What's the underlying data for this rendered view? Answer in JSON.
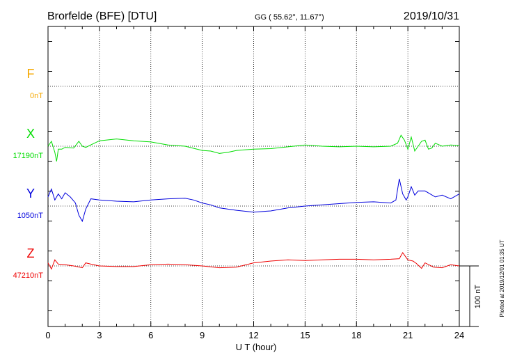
{
  "header": {
    "station": "Brorfelde (BFE)  [DTU]",
    "coords": "GG ( 55.62°,  11.67°)",
    "date": "2019/10/31"
  },
  "footer": {
    "plotted": "Plotted at 2019/12/01 01:35 UT"
  },
  "chart_data": {
    "type": "line",
    "xlabel": "U T (hour)",
    "xlim": [
      0,
      24
    ],
    "xticks": [
      0,
      3,
      6,
      9,
      12,
      15,
      18,
      21,
      24
    ],
    "scale_bar": "100 nT",
    "grid": true,
    "series": [
      {
        "name": "F",
        "baseline": "0nT",
        "color": "#f5a800",
        "x": [],
        "y": []
      },
      {
        "name": "X",
        "baseline": "17190nT",
        "color": "#00dd00",
        "x": [
          0,
          0.2,
          0.4,
          0.5,
          0.6,
          0.8,
          1,
          1.5,
          1.8,
          2,
          2.2,
          3,
          4,
          5,
          6,
          7,
          8,
          9,
          9.5,
          10,
          10.5,
          11,
          12,
          13,
          14,
          15,
          16,
          17,
          18,
          19,
          20,
          20.4,
          20.6,
          20.8,
          21,
          21.2,
          21.4,
          21.6,
          21.8,
          22,
          22.2,
          22.4,
          22.6,
          23,
          23.5,
          24
        ],
        "y": [
          0,
          8,
          -10,
          -25,
          -5,
          -5,
          -2,
          -3,
          8,
          0,
          -2,
          9,
          12,
          9,
          7,
          2,
          0,
          -7,
          -8,
          -12,
          -10,
          -7,
          -5,
          -4,
          -1,
          2,
          0,
          -1,
          0,
          -1,
          0,
          5,
          18,
          10,
          -5,
          15,
          -8,
          0,
          8,
          10,
          -5,
          -3,
          5,
          0,
          2,
          1
        ]
      },
      {
        "name": "Y",
        "baseline": "1050nT",
        "color": "#0000dd",
        "x": [
          0,
          0.2,
          0.4,
          0.6,
          0.8,
          1,
          1.3,
          1.6,
          1.8,
          2,
          2.2,
          2.5,
          3,
          4,
          5,
          6,
          7,
          8,
          8.5,
          9,
          9.5,
          10,
          10.5,
          11,
          12,
          13,
          14,
          15,
          16,
          17,
          18,
          19,
          20,
          20.3,
          20.5,
          20.7,
          20.9,
          21,
          21.2,
          21.4,
          21.6,
          22,
          22.3,
          22.6,
          23,
          23.5,
          24
        ],
        "y": [
          15,
          28,
          10,
          20,
          12,
          22,
          15,
          5,
          -15,
          -25,
          -5,
          12,
          10,
          8,
          7,
          10,
          12,
          13,
          10,
          5,
          2,
          -3,
          -5,
          -7,
          -10,
          -8,
          -3,
          0,
          2,
          4,
          6,
          7,
          5,
          10,
          45,
          20,
          10,
          15,
          32,
          18,
          25,
          25,
          20,
          15,
          18,
          12,
          20
        ]
      },
      {
        "name": "Z",
        "baseline": "47210nT",
        "color": "#ee0000",
        "x": [
          0,
          0.2,
          0.4,
          0.6,
          1,
          1.5,
          2,
          2.2,
          2.5,
          3,
          4,
          5,
          6,
          7,
          8,
          9,
          10,
          11,
          12,
          13,
          14,
          15,
          16,
          17,
          18,
          19,
          20,
          20.5,
          20.7,
          21,
          21.3,
          21.5,
          21.8,
          22,
          22.5,
          23,
          23.5,
          24
        ],
        "y": [
          5,
          -5,
          10,
          3,
          2,
          0,
          -3,
          5,
          3,
          0,
          -1,
          -1,
          2,
          3,
          2,
          0,
          -3,
          -2,
          5,
          8,
          10,
          9,
          10,
          11,
          11,
          10,
          11,
          12,
          22,
          10,
          8,
          4,
          -4,
          5,
          -2,
          -3,
          2,
          0
        ]
      }
    ]
  }
}
